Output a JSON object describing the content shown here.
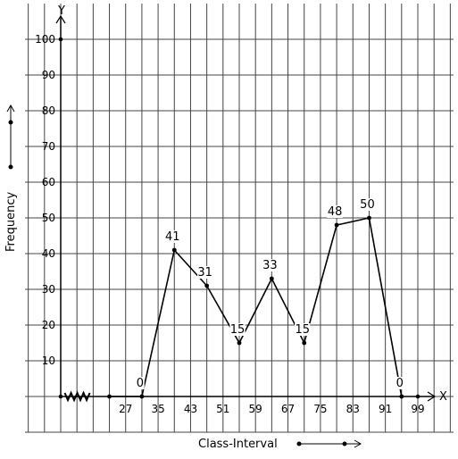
{
  "chart_data": {
    "type": "line",
    "title": "",
    "xlabel": "Class-Interval",
    "ylabel": "Frequency",
    "x_axis_letter": "X",
    "y_axis_letter": "Y",
    "x_ticks": [
      "27",
      "35",
      "43",
      "51",
      "59",
      "67",
      "75",
      "83",
      "91",
      "99"
    ],
    "x_tick_values": [
      27,
      35,
      43,
      51,
      59,
      67,
      75,
      83,
      91,
      99
    ],
    "y_ticks": [
      "10",
      "20",
      "30",
      "40",
      "50",
      "60",
      "70",
      "80",
      "90",
      "100"
    ],
    "y_tick_values": [
      10,
      20,
      30,
      40,
      50,
      60,
      70,
      80,
      90,
      100
    ],
    "xlim": [
      11,
      99
    ],
    "ylim": [
      0,
      100
    ],
    "grid": true,
    "x_axis_break": true,
    "series": [
      {
        "x": [
          23,
          31,
          39,
          47,
          55,
          63,
          71,
          79,
          87,
          95
        ],
        "y": [
          0,
          0,
          41,
          31,
          15,
          33,
          15,
          48,
          50,
          0
        ],
        "labels": [
          "",
          "0",
          "41",
          "31",
          "15",
          "33",
          "15",
          "48",
          "50",
          "0"
        ]
      }
    ],
    "colors": {
      "line": "#000000",
      "grid": "#444444",
      "background": "#ffffff"
    }
  }
}
